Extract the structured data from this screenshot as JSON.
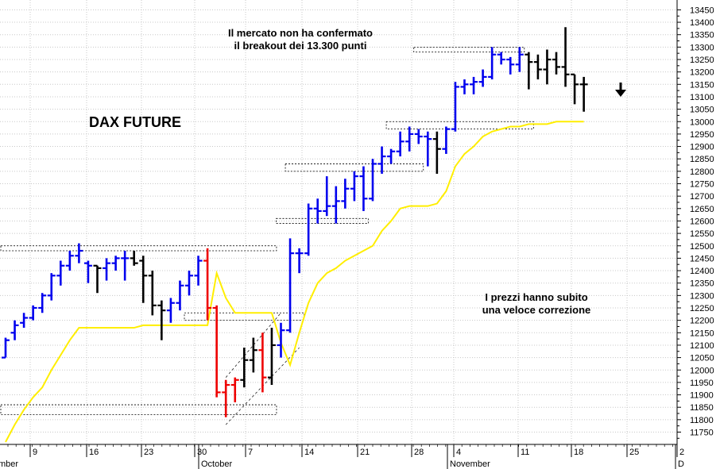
{
  "chart_data": {
    "type": "ohlc",
    "title": "DAX FUTURE",
    "annotations": [
      {
        "id": "top",
        "lines": [
          "Il mercato non ha confermato",
          "il breakout dei 13.300 punti"
        ]
      },
      {
        "id": "right",
        "lines": [
          "I prezzi hanno subito",
          "una veloce correzione"
        ]
      }
    ],
    "y_axis": {
      "min": 11700,
      "max": 13450,
      "step": 50,
      "position": "right",
      "ticks": [
        11750,
        11800,
        11850,
        11900,
        11950,
        12000,
        12050,
        12100,
        12150,
        12200,
        12250,
        12300,
        12350,
        12400,
        12450,
        12500,
        12550,
        12600,
        12650,
        12700,
        12750,
        12800,
        12850,
        12900,
        12950,
        13000,
        13050,
        13100,
        13150,
        13200,
        13250,
        13300,
        13350,
        13400,
        13450
      ]
    },
    "x_axis": {
      "day_ticks": [
        "9",
        "16",
        "23",
        "30",
        "7",
        "14",
        "21",
        "28",
        "4",
        "11",
        "18",
        "25",
        "2"
      ],
      "month_labels": [
        "mber",
        "October",
        "November",
        "D"
      ]
    },
    "colors": {
      "up": "#0000ee",
      "down": "#000000",
      "drop": "#ee0000",
      "ma": "#ffee00"
    },
    "bars": [
      {
        "c": "up",
        "o": 12050,
        "h": 12130,
        "l": 12050,
        "cl": 12120
      },
      {
        "c": "up",
        "o": 12150,
        "h": 12200,
        "l": 12120,
        "cl": 12180
      },
      {
        "c": "up",
        "o": 12190,
        "h": 12230,
        "l": 12170,
        "cl": 12210
      },
      {
        "c": "up",
        "o": 12210,
        "h": 12260,
        "l": 12200,
        "cl": 12250
      },
      {
        "c": "up",
        "o": 12250,
        "h": 12310,
        "l": 12230,
        "cl": 12300
      },
      {
        "c": "up",
        "o": 12300,
        "h": 12390,
        "l": 12280,
        "cl": 12380
      },
      {
        "c": "up",
        "o": 12380,
        "h": 12440,
        "l": 12340,
        "cl": 12420
      },
      {
        "c": "up",
        "o": 12420,
        "h": 12480,
        "l": 12400,
        "cl": 12460
      },
      {
        "c": "up",
        "o": 12460,
        "h": 12510,
        "l": 12430,
        "cl": 12480
      },
      {
        "c": "up",
        "o": 12430,
        "h": 12440,
        "l": 12350,
        "cl": 12420
      },
      {
        "c": "down",
        "o": 12420,
        "h": 12420,
        "l": 12310,
        "cl": 12410
      },
      {
        "c": "up",
        "o": 12410,
        "h": 12450,
        "l": 12360,
        "cl": 12430
      },
      {
        "c": "up",
        "o": 12430,
        "h": 12460,
        "l": 12400,
        "cl": 12450
      },
      {
        "c": "up",
        "o": 12450,
        "h": 12480,
        "l": 12360,
        "cl": 12450
      },
      {
        "c": "down",
        "o": 12450,
        "h": 12480,
        "l": 12420,
        "cl": 12430
      },
      {
        "c": "down",
        "o": 12440,
        "h": 12460,
        "l": 12270,
        "cl": 12380
      },
      {
        "c": "down",
        "o": 12380,
        "h": 12400,
        "l": 12220,
        "cl": 12260
      },
      {
        "c": "down",
        "o": 12260,
        "h": 12280,
        "l": 12120,
        "cl": 12240
      },
      {
        "c": "up",
        "o": 12240,
        "h": 12290,
        "l": 12190,
        "cl": 12270
      },
      {
        "c": "up",
        "o": 12270,
        "h": 12360,
        "l": 12240,
        "cl": 12340
      },
      {
        "c": "up",
        "o": 12340,
        "h": 12400,
        "l": 12300,
        "cl": 12380
      },
      {
        "c": "up",
        "o": 12380,
        "h": 12460,
        "l": 12340,
        "cl": 12440
      },
      {
        "c": "drop",
        "o": 12440,
        "h": 12490,
        "l": 12200,
        "cl": 12250
      },
      {
        "c": "drop",
        "o": 12250,
        "h": 12260,
        "l": 11890,
        "cl": 11910
      },
      {
        "c": "drop",
        "o": 11910,
        "h": 11960,
        "l": 11810,
        "cl": 11940
      },
      {
        "c": "drop",
        "o": 11940,
        "h": 11970,
        "l": 11870,
        "cl": 11960
      },
      {
        "c": "down",
        "o": 11960,
        "h": 12090,
        "l": 11930,
        "cl": 12040
      },
      {
        "c": "down",
        "o": 12040,
        "h": 12130,
        "l": 11990,
        "cl": 12080
      },
      {
        "c": "drop",
        "o": 12080,
        "h": 12150,
        "l": 11910,
        "cl": 11970
      },
      {
        "c": "down",
        "o": 11970,
        "h": 12170,
        "l": 11940,
        "cl": 12100
      },
      {
        "c": "up",
        "o": 12100,
        "h": 12190,
        "l": 12050,
        "cl": 12160
      },
      {
        "c": "up",
        "o": 12160,
        "h": 12530,
        "l": 12150,
        "cl": 12470
      },
      {
        "c": "up",
        "o": 12470,
        "h": 12490,
        "l": 12390,
        "cl": 12470
      },
      {
        "c": "up",
        "o": 12470,
        "h": 12670,
        "l": 12460,
        "cl": 12650
      },
      {
        "c": "up",
        "o": 12650,
        "h": 12690,
        "l": 12590,
        "cl": 12640
      },
      {
        "c": "up",
        "o": 12640,
        "h": 12780,
        "l": 12620,
        "cl": 12660
      },
      {
        "c": "up",
        "o": 12660,
        "h": 12740,
        "l": 12590,
        "cl": 12680
      },
      {
        "c": "up",
        "o": 12680,
        "h": 12770,
        "l": 12650,
        "cl": 12730
      },
      {
        "c": "up",
        "o": 12730,
        "h": 12800,
        "l": 12680,
        "cl": 12780
      },
      {
        "c": "up",
        "o": 12780,
        "h": 12820,
        "l": 12640,
        "cl": 12690
      },
      {
        "c": "up",
        "o": 12690,
        "h": 12850,
        "l": 12680,
        "cl": 12830
      },
      {
        "c": "up",
        "o": 12830,
        "h": 12900,
        "l": 12790,
        "cl": 12860
      },
      {
        "c": "up",
        "o": 12860,
        "h": 12890,
        "l": 12830,
        "cl": 12880
      },
      {
        "c": "up",
        "o": 12880,
        "h": 12960,
        "l": 12860,
        "cl": 12920
      },
      {
        "c": "up",
        "o": 12920,
        "h": 12980,
        "l": 12880,
        "cl": 12950
      },
      {
        "c": "up",
        "o": 12950,
        "h": 12970,
        "l": 12910,
        "cl": 12940
      },
      {
        "c": "up",
        "o": 12940,
        "h": 12960,
        "l": 12820,
        "cl": 12930
      },
      {
        "c": "down",
        "o": 12930,
        "h": 12960,
        "l": 12790,
        "cl": 12890
      },
      {
        "c": "up",
        "o": 12890,
        "h": 12980,
        "l": 12870,
        "cl": 12970
      },
      {
        "c": "up",
        "o": 12970,
        "h": 13160,
        "l": 12960,
        "cl": 13140
      },
      {
        "c": "up",
        "o": 13140,
        "h": 13170,
        "l": 13110,
        "cl": 13150
      },
      {
        "c": "up",
        "o": 13150,
        "h": 13180,
        "l": 13110,
        "cl": 13160
      },
      {
        "c": "up",
        "o": 13160,
        "h": 13210,
        "l": 13140,
        "cl": 13180
      },
      {
        "c": "up",
        "o": 13180,
        "h": 13300,
        "l": 13170,
        "cl": 13270
      },
      {
        "c": "up",
        "o": 13270,
        "h": 13280,
        "l": 13230,
        "cl": 13250
      },
      {
        "c": "up",
        "o": 13250,
        "h": 13260,
        "l": 13190,
        "cl": 13230
      },
      {
        "c": "up",
        "o": 13230,
        "h": 13300,
        "l": 13200,
        "cl": 13270
      },
      {
        "c": "down",
        "o": 13270,
        "h": 13280,
        "l": 13130,
        "cl": 13240
      },
      {
        "c": "down",
        "o": 13240,
        "h": 13270,
        "l": 13170,
        "cl": 13210
      },
      {
        "c": "down",
        "o": 13210,
        "h": 13290,
        "l": 13150,
        "cl": 13250
      },
      {
        "c": "down",
        "o": 13250,
        "h": 13280,
        "l": 13190,
        "cl": 13220
      },
      {
        "c": "down",
        "o": 13220,
        "h": 13380,
        "l": 13140,
        "cl": 13190
      },
      {
        "c": "down",
        "o": 13190,
        "h": 13190,
        "l": 13070,
        "cl": 13150
      },
      {
        "c": "down",
        "o": 13150,
        "h": 13180,
        "l": 13040,
        "cl": 13150
      }
    ],
    "moving_average": [
      11710,
      11780,
      11840,
      11890,
      11930,
      12000,
      12060,
      12120,
      12170,
      12170,
      12170,
      12170,
      12170,
      12170,
      12170,
      12180,
      12180,
      12180,
      12180,
      12180,
      12180,
      12180,
      12180,
      12390,
      12290,
      12230,
      12230,
      12230,
      12230,
      12230,
      12110,
      12020,
      12150,
      12270,
      12350,
      12390,
      12410,
      12440,
      12460,
      12480,
      12500,
      12560,
      12600,
      12650,
      12660,
      12660,
      12660,
      12670,
      12720,
      12820,
      12870,
      12900,
      12940,
      12960,
      12970,
      12980,
      12980,
      12990,
      12990,
      12990,
      13000,
      13000,
      13000,
      13000
    ],
    "zones": [
      {
        "from": 0,
        "to": 29,
        "low": 12480,
        "high": 12500
      },
      {
        "from": 20,
        "to": 32,
        "low": 12200,
        "high": 12230
      },
      {
        "from": 0,
        "to": 29,
        "low": 11820,
        "high": 11860
      },
      {
        "from": 30,
        "to": 39,
        "low": 12590,
        "high": 12610
      },
      {
        "from": 31,
        "to": 45,
        "low": 12800,
        "high": 12830
      },
      {
        "from": 42,
        "to": 57,
        "low": 12970,
        "high": 13000
      },
      {
        "from": 45,
        "to": 56,
        "low": 13280,
        "high": 13300
      }
    ],
    "arrow": "down"
  }
}
